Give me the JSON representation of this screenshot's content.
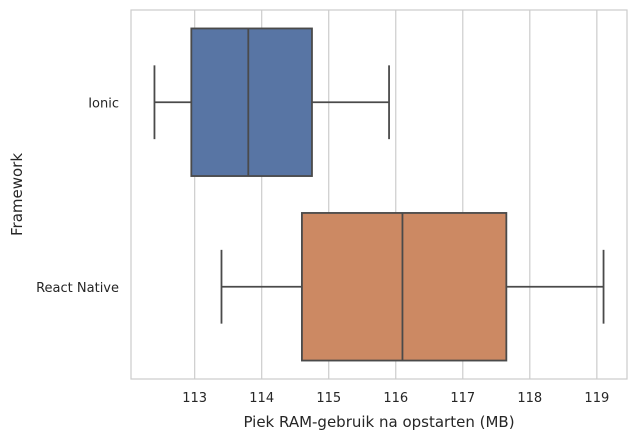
{
  "chart_data": {
    "type": "boxplot",
    "orientation": "horizontal",
    "xlabel": "Piek RAM-gebruik na opstarten (MB)",
    "ylabel": "Framework",
    "xlim": [
      112.05,
      119.45
    ],
    "xticks": [
      113,
      114,
      115,
      116,
      117,
      118,
      119
    ],
    "grid": true,
    "categories": [
      "Ionic",
      "React Native"
    ],
    "boxes": [
      {
        "category": "Ionic",
        "whisker_low": 112.4,
        "q1": 112.95,
        "median": 113.8,
        "q3": 114.75,
        "whisker_high": 115.9,
        "color": "#5875a4"
      },
      {
        "category": "React Native",
        "whisker_low": 113.4,
        "q1": 114.6,
        "median": 116.1,
        "q3": 117.65,
        "whisker_high": 119.1,
        "color": "#cc8963"
      }
    ]
  }
}
